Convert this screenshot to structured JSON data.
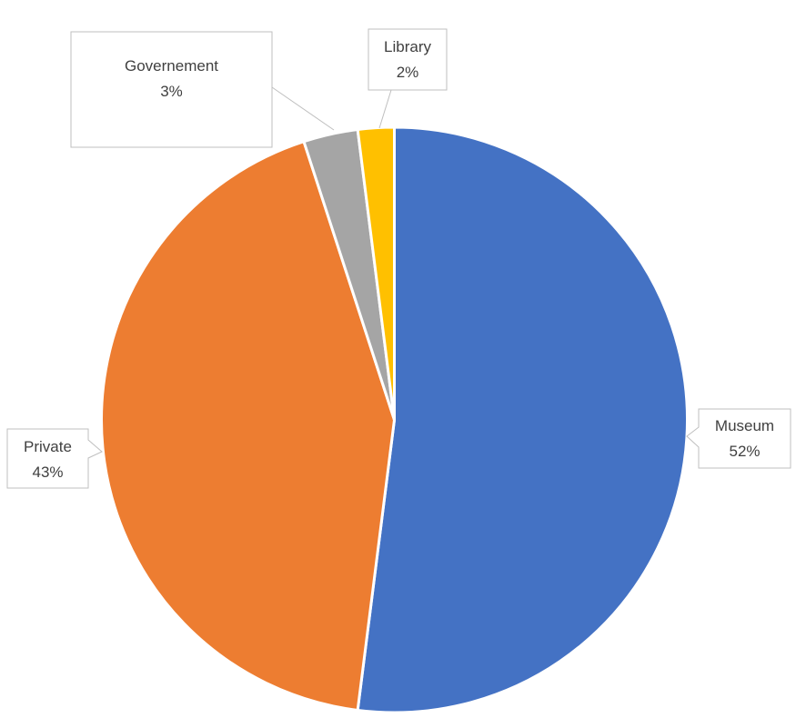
{
  "chart_data": {
    "type": "pie",
    "categories": [
      "Museum",
      "Private",
      "Governement",
      "Library"
    ],
    "values": [
      52,
      43,
      3,
      2
    ],
    "labels": [
      "52%",
      "43%",
      "3%",
      "2%"
    ],
    "colors": [
      "#4472C4",
      "#ED7D31",
      "#A5A5A5",
      "#FFC000"
    ]
  }
}
